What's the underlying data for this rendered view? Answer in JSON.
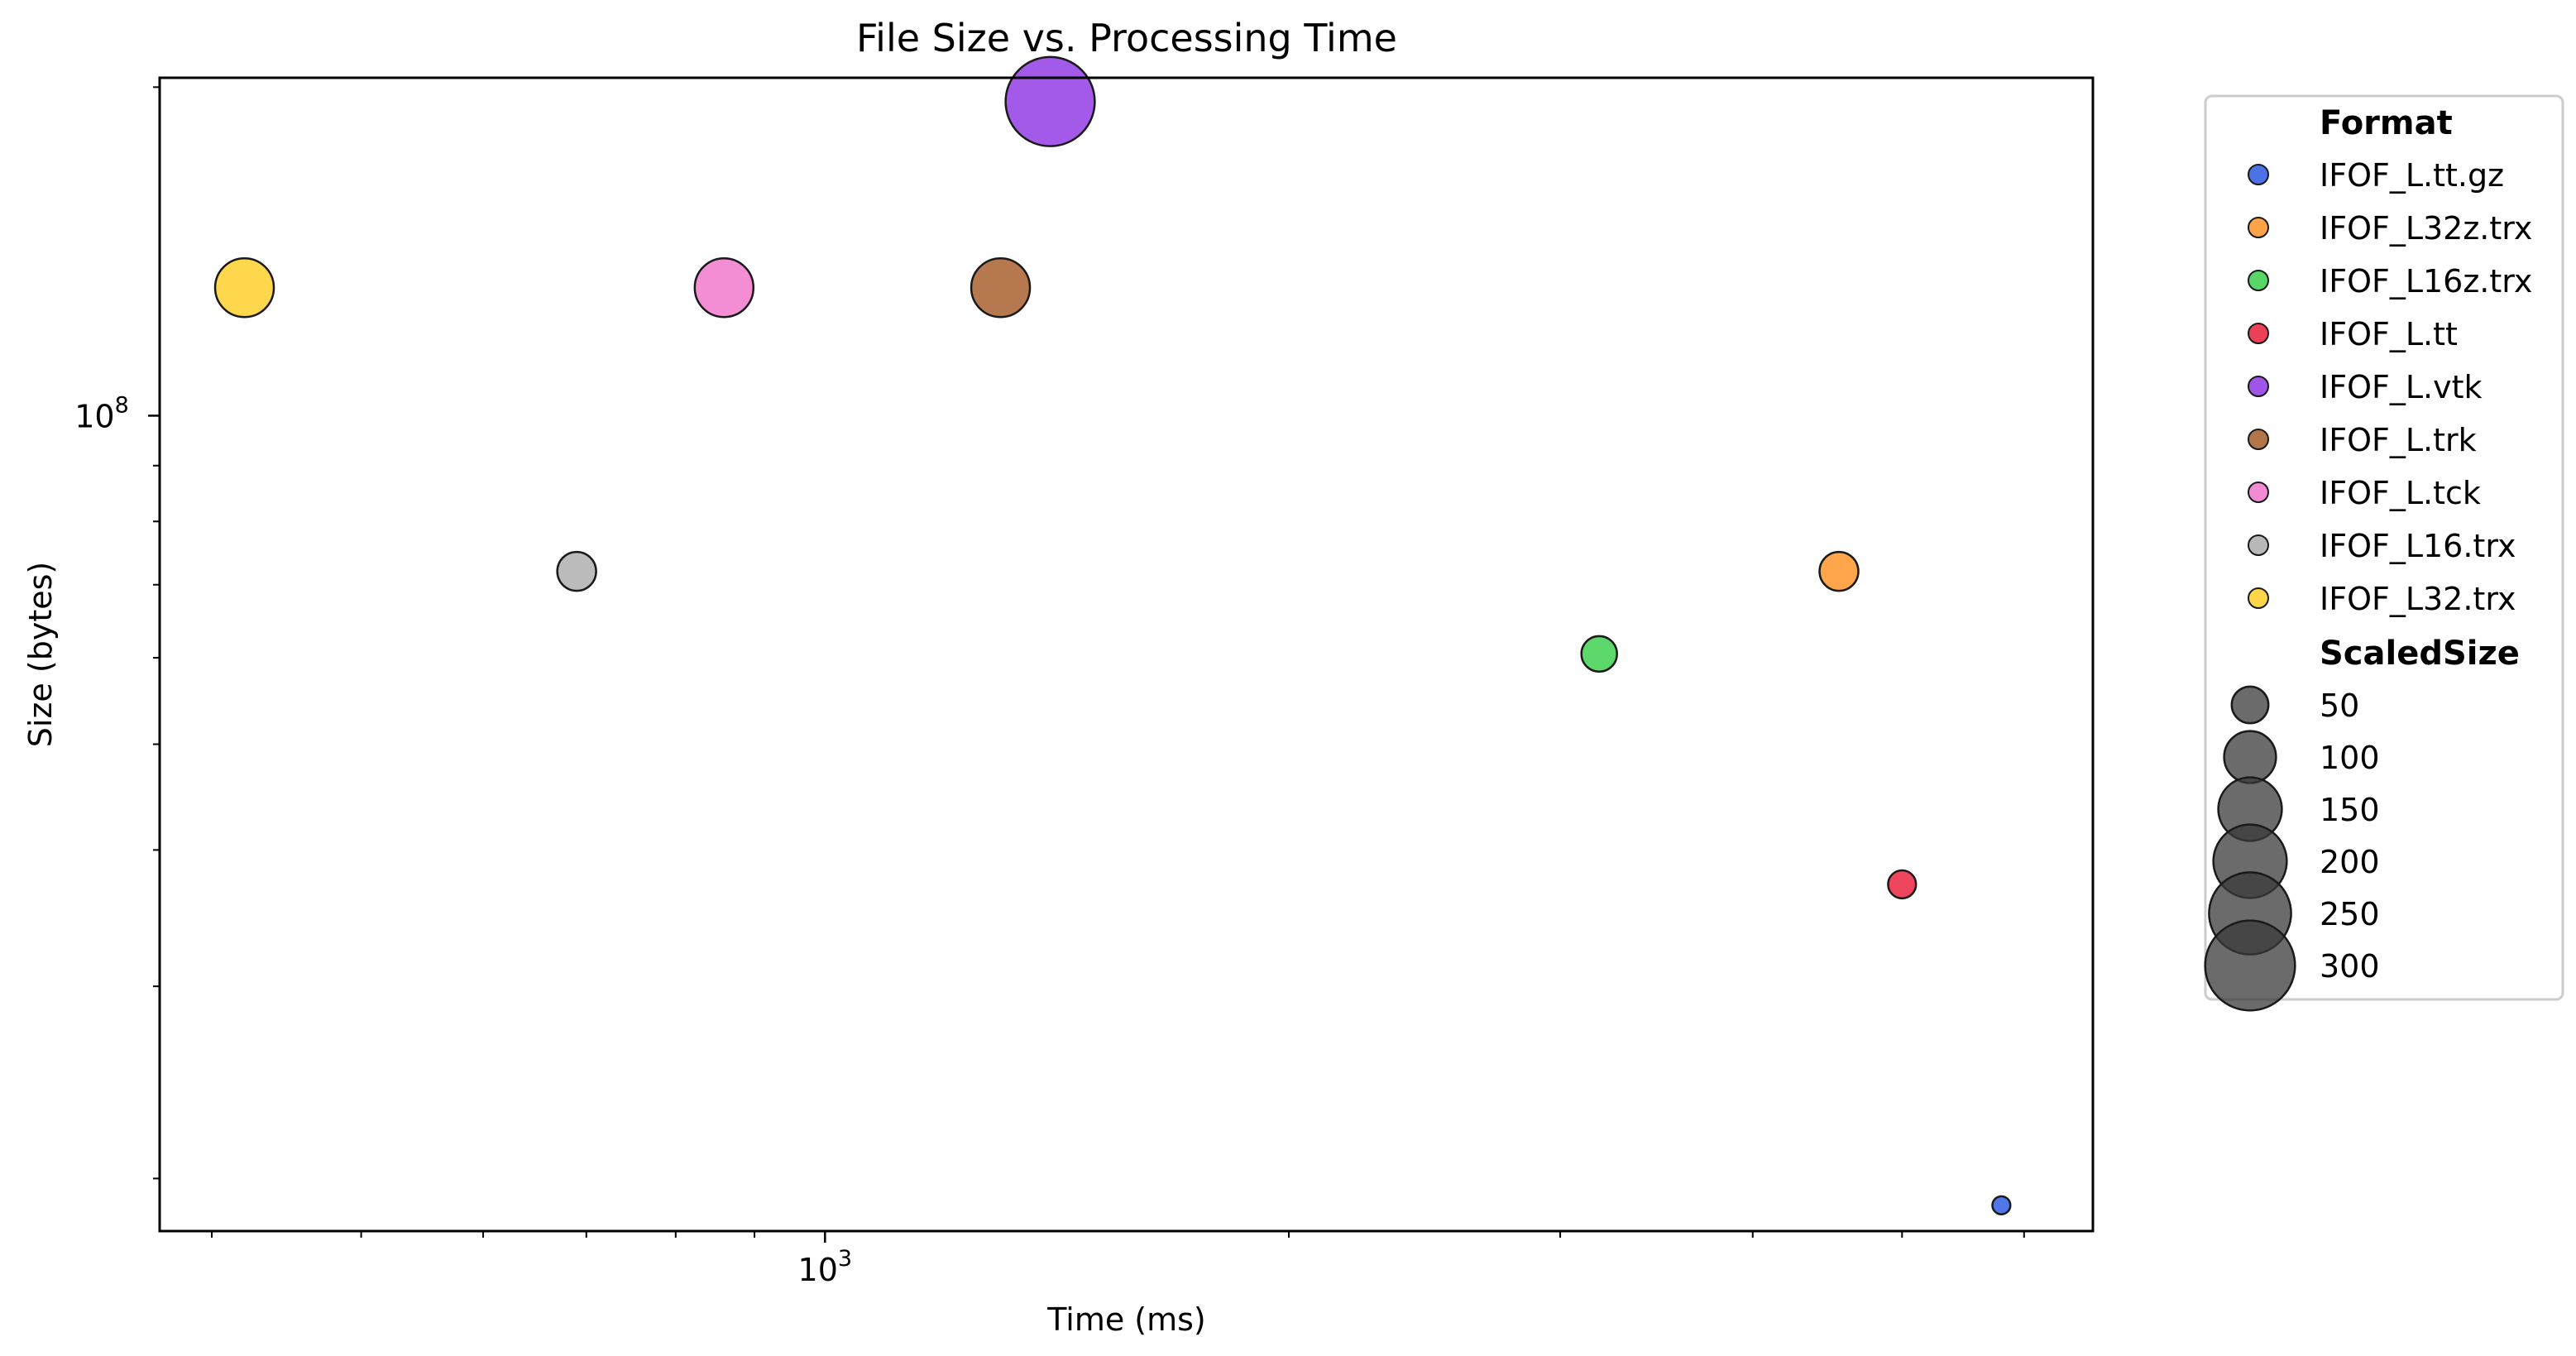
{
  "chart_data": {
    "type": "scatter",
    "title": "File Size vs. Processing Time",
    "xlabel": "Time (ms)",
    "ylabel": "Size (bytes)",
    "x_scale": "log",
    "y_scale": "log",
    "xlim": [
      370,
      6650
    ],
    "ylim": [
      17900000,
      204000000
    ],
    "x_major_ticks": [
      {
        "value": 1000,
        "base": "10",
        "exp": "3"
      }
    ],
    "y_major_ticks": [
      {
        "value": 100000000,
        "base": "10",
        "exp": "8"
      }
    ],
    "x_minor_ticks": [
      400,
      500,
      600,
      700,
      800,
      900,
      2000,
      3000,
      4000,
      5000,
      6000
    ],
    "y_minor_ticks": [
      20000000,
      30000000,
      40000000,
      50000000,
      60000000,
      70000000,
      80000000,
      90000000,
      200000000
    ],
    "grid": false,
    "legend_position": "outside-right",
    "legend_format_title": "Format",
    "legend_size_title": "ScaledSize",
    "series": [
      {
        "name": "IFOF_L.tt.gz",
        "color": "#1f4fe0",
        "x": 5800,
        "y": 18900000,
        "scaled_size": 12
      },
      {
        "name": "IFOF_L32z.trx",
        "color": "#ff8c1a",
        "x": 4550,
        "y": 72000000,
        "scaled_size": 56
      },
      {
        "name": "IFOF_L16z.trx",
        "color": "#2ecc40",
        "x": 3180,
        "y": 60500000,
        "scaled_size": 47
      },
      {
        "name": "IFOF_L.tt",
        "color": "#e8112d",
        "x": 5000,
        "y": 37200000,
        "scaled_size": 29
      },
      {
        "name": "IFOF_L.vtk",
        "color": "#8a2be2",
        "x": 1400,
        "y": 194000000,
        "scaled_size": 295
      },
      {
        "name": "IFOF_L.trk",
        "color": "#a0521d",
        "x": 1300,
        "y": 131000000,
        "scaled_size": 128
      },
      {
        "name": "IFOF_L.tck",
        "color": "#f06ec8",
        "x": 860,
        "y": 131000000,
        "scaled_size": 128
      },
      {
        "name": "IFOF_L16.trx",
        "color": "#a8a8a8",
        "x": 690,
        "y": 72000000,
        "scaled_size": 56
      },
      {
        "name": "IFOF_L32.trx",
        "color": "#ffcc1a",
        "x": 420,
        "y": 131000000,
        "scaled_size": 128
      }
    ],
    "size_legend": [
      {
        "label": "50",
        "value": 50
      },
      {
        "label": "100",
        "value": 100
      },
      {
        "label": "150",
        "value": 150
      },
      {
        "label": "200",
        "value": 200
      },
      {
        "label": "250",
        "value": 250
      },
      {
        "label": "300",
        "value": 300
      }
    ]
  }
}
